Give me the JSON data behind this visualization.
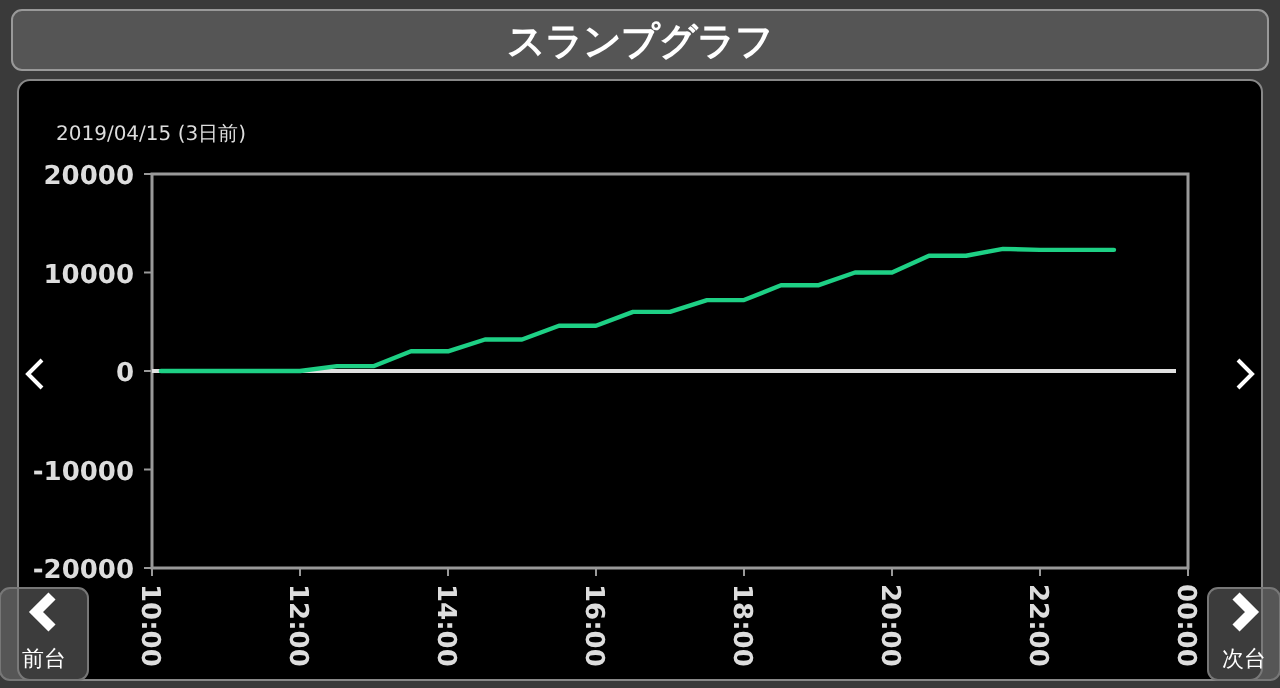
{
  "chart_data": {
    "type": "line",
    "title": "スランプグラフ",
    "subtitle": "2019/04/15 (3日前)",
    "annotations": [
      "前台",
      "次台"
    ],
    "x": [
      10.12,
      12,
      12.5,
      13,
      13.5,
      14,
      14.5,
      15,
      15.5,
      16,
      16.5,
      17,
      17.5,
      18,
      18.5,
      19,
      19.5,
      20,
      20.5,
      21,
      21.5,
      22,
      23
    ],
    "series": [
      {
        "color": "#1ed085",
        "values": [
          0,
          0,
          500,
          500,
          2000,
          2000,
          3200,
          3200,
          4600,
          4600,
          6000,
          6000,
          7200,
          7200,
          8700,
          8700,
          10000,
          10000,
          11700,
          11700,
          12400,
          12300,
          12300
        ]
      }
    ],
    "xlim": [
      10,
      24
    ],
    "ylim": [
      -20000,
      20000
    ],
    "xticks": [
      {
        "value": 10,
        "label": "10:00"
      },
      {
        "value": 12,
        "label": "12:00"
      },
      {
        "value": 14,
        "label": "14:00"
      },
      {
        "value": 16,
        "label": "16:00"
      },
      {
        "value": 18,
        "label": "18:00"
      },
      {
        "value": 20,
        "label": "20:00"
      },
      {
        "value": 22,
        "label": "22:00"
      },
      {
        "value": 24,
        "label": "00:00"
      }
    ],
    "yticks": [
      20000,
      10000,
      0,
      -10000,
      -20000
    ],
    "ref_lines": [
      {
        "axis": "y",
        "value": 0,
        "color": "#e0e0e0"
      }
    ]
  }
}
